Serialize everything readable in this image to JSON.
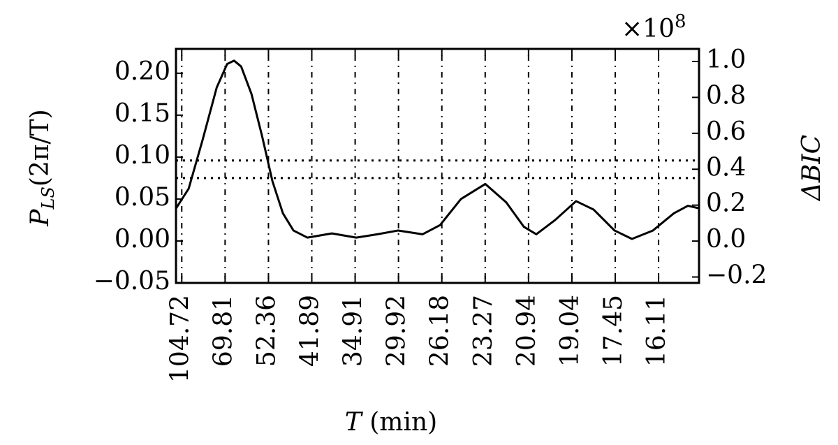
{
  "chart_data": {
    "type": "line",
    "xlabel": [
      "T",
      " (min)"
    ],
    "ylabel": [
      "P",
      "LS",
      "(2π/T)"
    ],
    "y2label": "ΔBIC",
    "y2_multiplier": [
      "×10",
      "8"
    ],
    "x": [
      0.0561,
      0.0648,
      0.0745,
      0.0842,
      0.0914,
      0.0962,
      0.1011,
      0.1083,
      0.1156,
      0.1228,
      0.13,
      0.1373,
      0.147,
      0.1639,
      0.1808,
      0.1953,
      0.2098,
      0.2267,
      0.2388,
      0.2532,
      0.2701,
      0.2846,
      0.2967,
      0.3054,
      0.3184,
      0.3329,
      0.345,
      0.3595,
      0.3716,
      0.3861,
      0.4006,
      0.4103,
      0.418
    ],
    "series": [
      {
        "color": "#000000",
        "values": [
          0.039,
          0.0625,
          0.121,
          0.183,
          0.211,
          0.215,
          0.208,
          0.175,
          0.125,
          0.071,
          0.033,
          0.0125,
          0.004,
          0.009,
          0.004,
          0.008,
          0.0125,
          0.008,
          0.019,
          0.05,
          0.068,
          0.046,
          0.017,
          0.008,
          0.025,
          0.0475,
          0.0375,
          0.0125,
          0.0025,
          0.0125,
          0.033,
          0.042,
          0.039
        ]
      }
    ],
    "hlines": [
      0.096,
      0.075
    ],
    "xlim": [
      0.056,
      0.418
    ],
    "xticks": [
      {
        "value": 0.06,
        "label": "104.72"
      },
      {
        "value": 0.09,
        "label": "69.81"
      },
      {
        "value": 0.12,
        "label": "52.36"
      },
      {
        "value": 0.15,
        "label": "41.89"
      },
      {
        "value": 0.18,
        "label": "34.91"
      },
      {
        "value": 0.21,
        "label": "29.92"
      },
      {
        "value": 0.24,
        "label": "26.18"
      },
      {
        "value": 0.27,
        "label": "23.27"
      },
      {
        "value": 0.3,
        "label": "20.94"
      },
      {
        "value": 0.33,
        "label": "19.04"
      },
      {
        "value": 0.36,
        "label": "17.45"
      },
      {
        "value": 0.39,
        "label": "16.11"
      }
    ],
    "ylim": [
      -0.05,
      0.229
    ],
    "yticks": [
      {
        "value": -0.05,
        "label": "−0.05"
      },
      {
        "value": 0,
        "label": "0.00"
      },
      {
        "value": 0.05,
        "label": "0.05"
      },
      {
        "value": 0.1,
        "label": "0.10"
      },
      {
        "value": 0.15,
        "label": "0.15"
      },
      {
        "value": 0.2,
        "label": "0.20"
      }
    ],
    "y2lim": [
      -0.233,
      1.07
    ],
    "y2ticks": [
      {
        "value": -0.2,
        "label": "−0.2"
      },
      {
        "value": 0,
        "label": "0.0"
      },
      {
        "value": 0.2,
        "label": "0.2"
      },
      {
        "value": 0.4,
        "label": "0.4"
      },
      {
        "value": 0.6,
        "label": "0.6"
      },
      {
        "value": 0.8,
        "label": "0.8"
      },
      {
        "value": 1,
        "label": "1.0"
      }
    ],
    "grid": true
  }
}
